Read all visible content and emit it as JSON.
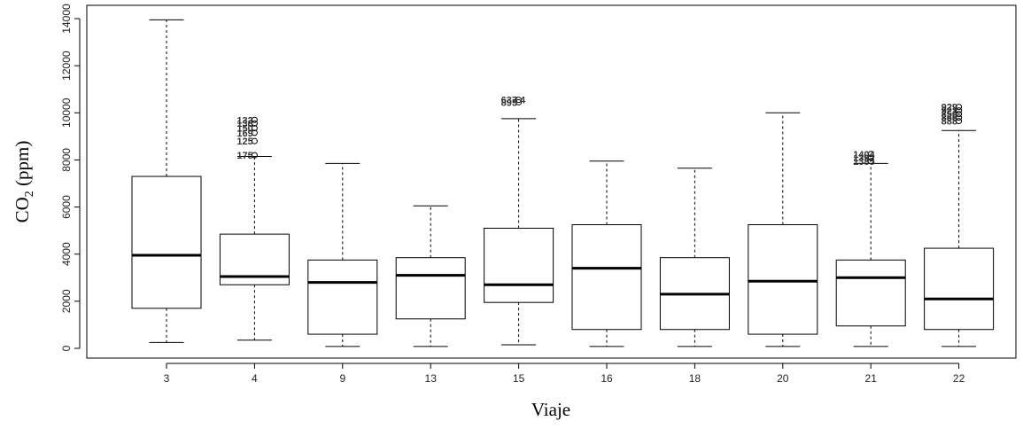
{
  "chart_data": {
    "type": "boxplot",
    "title": "",
    "xlabel": "Viaje",
    "ylabel_main": "CO",
    "ylabel_sub": "2",
    "ylabel_unit": " (ppm)",
    "ylim": [
      0,
      14000
    ],
    "y_ticks": [
      "0",
      "2000",
      "4000",
      "6000",
      "8000",
      "10000",
      "12000",
      "14000"
    ],
    "categories": [
      "3",
      "4",
      "9",
      "13",
      "15",
      "16",
      "18",
      "20",
      "21",
      "22"
    ],
    "boxes": [
      {
        "category": "3",
        "min": 250,
        "q1": 1700,
        "median": 3950,
        "q3": 7300,
        "max": 13950,
        "outliers": [],
        "outlier_labels": []
      },
      {
        "category": "4",
        "min": 350,
        "q1": 2700,
        "median": 3050,
        "q3": 4850,
        "max": 8150,
        "outliers": [
          8200,
          8800,
          9150,
          9350,
          9550,
          9700
        ],
        "outlier_labels": [
          "175",
          "125",
          "169",
          "150",
          "138",
          "132"
        ]
      },
      {
        "category": "9",
        "min": 80,
        "q1": 600,
        "median": 2800,
        "q3": 3750,
        "max": 7850,
        "outliers": [],
        "outlier_labels": []
      },
      {
        "category": "13",
        "min": 80,
        "q1": 1250,
        "median": 3100,
        "q3": 3850,
        "max": 6050,
        "outliers": [],
        "outlier_labels": []
      },
      {
        "category": "15",
        "min": 150,
        "q1": 1950,
        "median": 2700,
        "q3": 5100,
        "max": 9750,
        "outliers": [
          10450,
          10550
        ],
        "outlier_labels": [
          "895",
          "637 4"
        ]
      },
      {
        "category": "16",
        "min": 80,
        "q1": 800,
        "median": 3400,
        "q3": 5250,
        "max": 7950,
        "outliers": [],
        "outlier_labels": []
      },
      {
        "category": "18",
        "min": 80,
        "q1": 800,
        "median": 2300,
        "q3": 3850,
        "max": 7650,
        "outliers": [],
        "outlier_labels": []
      },
      {
        "category": "20",
        "min": 80,
        "q1": 600,
        "median": 2850,
        "q3": 5250,
        "max": 10000,
        "outliers": [],
        "outlier_labels": []
      },
      {
        "category": "21",
        "min": 80,
        "q1": 950,
        "median": 3000,
        "q3": 3750,
        "max": 7850,
        "outliers": [
          7950,
          8100,
          8250
        ],
        "outlier_labels": [
          "1385",
          "1392",
          "1404"
        ]
      },
      {
        "category": "22",
        "min": 80,
        "q1": 800,
        "median": 2100,
        "q3": 4250,
        "max": 9250,
        "outliers": [
          9650,
          9800,
          9950,
          10100,
          10250
        ],
        "outlier_labels": [
          "888",
          "866",
          "850",
          "921",
          "929"
        ]
      }
    ],
    "grid": false,
    "legend": "none"
  }
}
